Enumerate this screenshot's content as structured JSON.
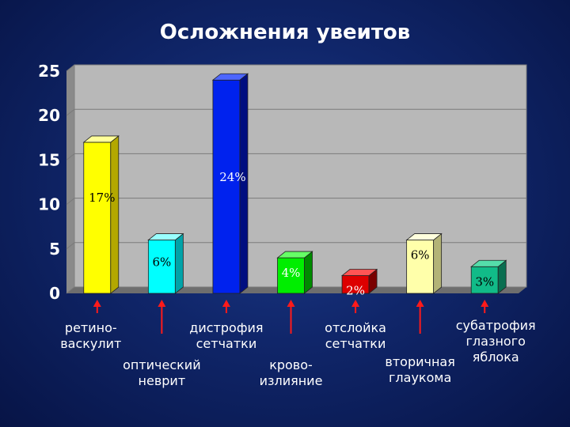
{
  "chart_data": {
    "type": "bar",
    "title": "Осложнения увеитов",
    "xlabel": "",
    "ylabel": "",
    "ylim": [
      0,
      25
    ],
    "yticks": [
      0,
      5,
      10,
      15,
      20,
      25
    ],
    "grid": true,
    "style": "3d",
    "categories": [
      "ретино-\nваскулит",
      "оптический\nневрит",
      "дистрофия\nсетчатки",
      "крово-\nизлияние",
      "отслойка\nсетчатки",
      "вторичная\nглаукома",
      "субатрофия\nглазного\nяблока"
    ],
    "values": [
      17,
      6,
      24,
      4,
      2,
      6,
      3
    ],
    "data_labels": [
      "17%",
      "6%",
      "24%",
      "4%",
      "2%",
      "6%",
      "3%"
    ],
    "colors": [
      {
        "front": "#ffff00",
        "side": "#b3a800",
        "top": "#ffff99"
      },
      {
        "front": "#00ffff",
        "side": "#00a3a8",
        "top": "#99ffff"
      },
      {
        "front": "#0022ee",
        "side": "#000e80",
        "top": "#4d66ff"
      },
      {
        "front": "#00ee00",
        "side": "#008a00",
        "top": "#66ff66"
      },
      {
        "front": "#dd0000",
        "side": "#7a0000",
        "top": "#ff5555"
      },
      {
        "front": "#ffffaa",
        "side": "#b3b377",
        "top": "#ffffdd"
      },
      {
        "front": "#11bb88",
        "side": "#0a6e50",
        "top": "#55ddaa"
      }
    ],
    "label_colors": [
      "#000000",
      "#000000",
      "#ffffff",
      "#ffffff",
      "#ffffff",
      "#000000",
      "#000000"
    ]
  }
}
